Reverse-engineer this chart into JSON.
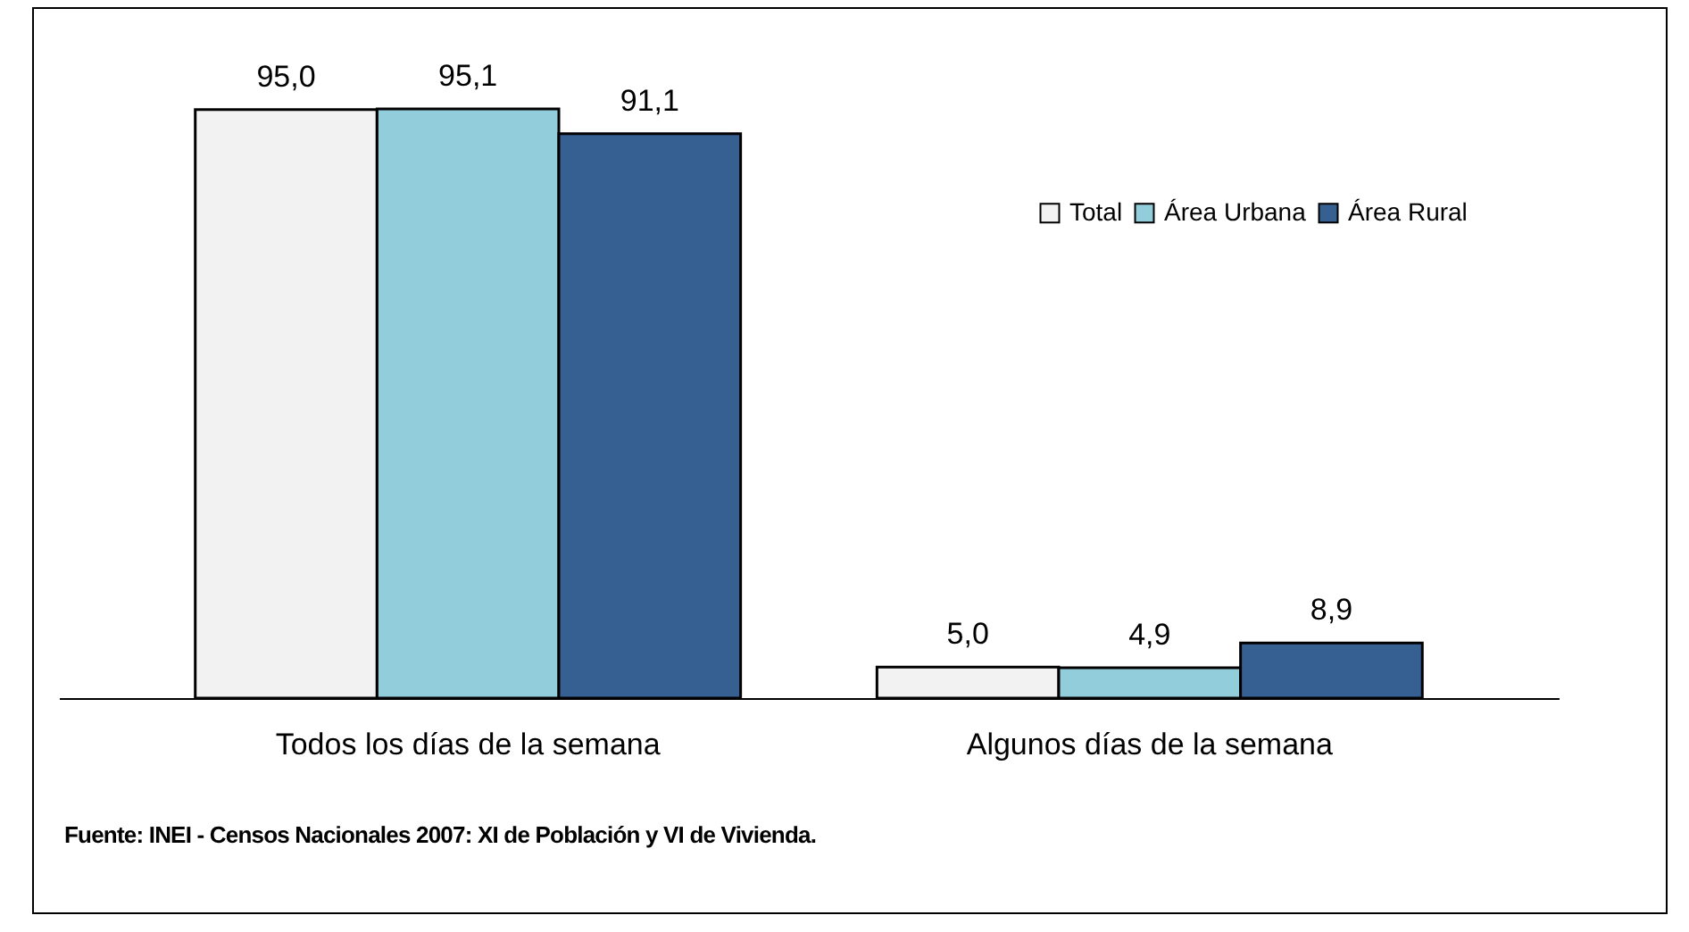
{
  "chart_data": {
    "type": "bar",
    "categories": [
      "Todos los días de la semana",
      "Algunos días de la semana"
    ],
    "series": [
      {
        "name": "Total",
        "color": "#f2f2f2",
        "values": [
          95.0,
          5.0
        ],
        "value_labels": [
          "95,0",
          "5,0"
        ]
      },
      {
        "name": "Área Urbana",
        "color": "#92cddc",
        "values": [
          95.1,
          4.9
        ],
        "value_labels": [
          "95,1",
          "4,9"
        ]
      },
      {
        "name": "Área Rural",
        "color": "#366092",
        "values": [
          91.1,
          8.9
        ],
        "value_labels": [
          "91,1",
          "8,9"
        ]
      }
    ],
    "legend": "top right",
    "grid": false,
    "annotations": [
      "Fuente: INEI - Censos Nacionales 2007: XI de Población y VI de Vivienda."
    ]
  }
}
